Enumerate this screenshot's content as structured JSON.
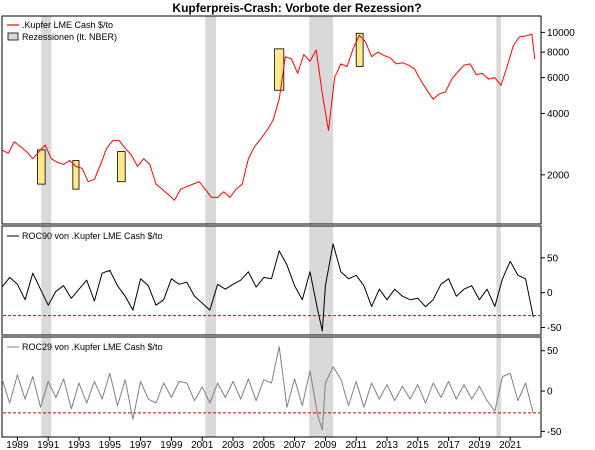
{
  "chart_data": [
    {
      "type": "line",
      "panel": "price",
      "title": "Kupferpreis-Crash: Vorbote der Rezession?",
      "scale": "log",
      "ylim": [
        1200,
        11500
      ],
      "y_ticks": [
        2000,
        4000,
        6000,
        8000,
        10000
      ],
      "y_tick_labels": [
        "2000",
        "4000",
        "6000",
        "8000",
        "10000"
      ],
      "legend_placement": "top-left",
      "series": [
        {
          "name": ".Kupfer LME Cash $/to",
          "color": "#ff0000",
          "x": [
            1988.0,
            1988.4,
            1988.8,
            1989.2,
            1989.6,
            1990.0,
            1990.4,
            1990.8,
            1991.2,
            1991.6,
            1992.0,
            1992.4,
            1992.8,
            1993.2,
            1993.6,
            1994.0,
            1994.4,
            1994.8,
            1995.2,
            1995.6,
            1996.0,
            1996.4,
            1996.8,
            1997.2,
            1997.6,
            1998.0,
            1998.4,
            1998.8,
            1999.2,
            1999.6,
            2000.0,
            2000.4,
            2000.8,
            2001.2,
            2001.6,
            2002.0,
            2002.4,
            2002.8,
            2003.2,
            2003.6,
            2004.0,
            2004.4,
            2004.8,
            2005.2,
            2005.6,
            2006.0,
            2006.4,
            2006.8,
            2007.2,
            2007.6,
            2008.0,
            2008.4,
            2008.8,
            2009.2,
            2009.6,
            2010.0,
            2010.4,
            2010.8,
            2011.2,
            2011.6,
            2012.0,
            2012.4,
            2012.8,
            2013.2,
            2013.6,
            2014.0,
            2014.4,
            2014.8,
            2015.2,
            2015.6,
            2016.0,
            2016.4,
            2016.8,
            2017.2,
            2017.6,
            2018.0,
            2018.4,
            2018.8,
            2019.2,
            2019.6,
            2020.0,
            2020.4,
            2020.8,
            2021.2,
            2021.6,
            2022.0,
            2022.4,
            2022.6
          ],
          "y": [
            2650,
            2550,
            2900,
            2750,
            2600,
            2400,
            2600,
            2800,
            2400,
            2300,
            2250,
            2350,
            2200,
            2150,
            1850,
            1900,
            2250,
            2700,
            2950,
            2950,
            2700,
            2500,
            2200,
            2400,
            2250,
            1800,
            1700,
            1600,
            1500,
            1700,
            1750,
            1800,
            1850,
            1700,
            1550,
            1550,
            1650,
            1550,
            1700,
            1800,
            2400,
            2750,
            3000,
            3300,
            3700,
            4700,
            7600,
            7400,
            6300,
            7800,
            7200,
            8200,
            5000,
            3300,
            6000,
            7000,
            6800,
            8300,
            9700,
            9000,
            7600,
            8000,
            7700,
            7500,
            7000,
            7100,
            6900,
            6600,
            5800,
            5200,
            4700,
            5000,
            5100,
            5900,
            6400,
            6900,
            7000,
            6200,
            6300,
            5900,
            6000,
            5500,
            6800,
            8600,
            9500,
            9600,
            9800,
            7400
          ]
        }
      ],
      "recession_legend": "Rezessionen (lt. NBER)",
      "recessions": [
        [
          1990.55,
          1991.2
        ],
        [
          2001.2,
          2001.9
        ],
        [
          2007.95,
          2009.5
        ],
        [
          2020.1,
          2020.4
        ]
      ],
      "highlights": [
        [
          1990.3,
          1990.8,
          1800,
          2650
        ],
        [
          1992.6,
          1993.0,
          1700,
          2350
        ],
        [
          1995.5,
          1996.0,
          1850,
          2600
        ],
        [
          2005.7,
          2006.3,
          5200,
          8300
        ],
        [
          2011.0,
          2011.45,
          6800,
          9900
        ]
      ],
      "x_ticks": [
        1989,
        1991,
        1993,
        1995,
        1997,
        1999,
        2001,
        2003,
        2005,
        2007,
        2009,
        2011,
        2013,
        2015,
        2017,
        2019,
        2021
      ],
      "xlim": [
        1988.0,
        2023.0
      ]
    },
    {
      "type": "line",
      "panel": "roc90",
      "ylim": [
        -55,
        90
      ],
      "y_ticks": [
        50,
        0,
        -50
      ],
      "y_tick_labels": [
        "50",
        "0",
        "-50"
      ],
      "reference_line": -33,
      "reference_color": "#cc0000",
      "series": [
        {
          "name": "ROC90 von .Kupfer LME Cash $/to",
          "color": "#000000",
          "x": [
            1988.0,
            1988.5,
            1989.0,
            1989.5,
            1990.0,
            1990.5,
            1991.0,
            1991.5,
            1992.0,
            1992.5,
            1993.0,
            1993.5,
            1994.0,
            1994.5,
            1995.0,
            1995.5,
            1996.0,
            1996.5,
            1997.0,
            1997.5,
            1998.0,
            1998.5,
            1999.0,
            1999.5,
            2000.0,
            2000.5,
            2001.0,
            2001.5,
            2002.0,
            2002.5,
            2003.0,
            2003.5,
            2004.0,
            2004.5,
            2005.0,
            2005.5,
            2006.0,
            2006.5,
            2007.0,
            2007.5,
            2008.0,
            2008.5,
            2008.8,
            2009.0,
            2009.5,
            2010.0,
            2010.5,
            2011.0,
            2011.5,
            2012.0,
            2012.5,
            2013.0,
            2013.5,
            2014.0,
            2014.5,
            2015.0,
            2015.5,
            2016.0,
            2016.5,
            2017.0,
            2017.5,
            2018.0,
            2018.5,
            2019.0,
            2019.5,
            2020.0,
            2020.5,
            2021.0,
            2021.5,
            2022.0,
            2022.5
          ],
          "y": [
            8,
            22,
            12,
            -10,
            28,
            5,
            -18,
            2,
            10,
            -8,
            5,
            18,
            -12,
            28,
            32,
            10,
            -5,
            -25,
            20,
            10,
            -18,
            -10,
            20,
            12,
            15,
            -5,
            -15,
            -25,
            12,
            5,
            12,
            18,
            30,
            8,
            22,
            20,
            60,
            40,
            10,
            -10,
            30,
            -25,
            -55,
            10,
            70,
            30,
            20,
            25,
            10,
            -20,
            5,
            -10,
            5,
            -5,
            -10,
            -8,
            -20,
            -10,
            12,
            20,
            -5,
            5,
            10,
            -10,
            5,
            -20,
            20,
            45,
            25,
            20,
            -35
          ]
        }
      ]
    },
    {
      "type": "line",
      "panel": "roc29",
      "ylim": [
        -52,
        62
      ],
      "y_ticks": [
        50,
        0,
        -50
      ],
      "y_tick_labels": [
        "50",
        "0",
        "-50"
      ],
      "reference_line": -27,
      "reference_color": "#cc0000",
      "series": [
        {
          "name": "ROC29 von .Kupfer LME Cash $/to",
          "color": "#808080",
          "x": [
            1988.0,
            1988.5,
            1989.0,
            1989.5,
            1990.0,
            1990.5,
            1991.0,
            1991.5,
            1992.0,
            1992.5,
            1993.0,
            1993.5,
            1994.0,
            1994.5,
            1995.0,
            1995.5,
            1996.0,
            1996.5,
            1997.0,
            1997.5,
            1998.0,
            1998.5,
            1999.0,
            1999.5,
            2000.0,
            2000.5,
            2001.0,
            2001.5,
            2002.0,
            2002.5,
            2003.0,
            2003.5,
            2004.0,
            2004.5,
            2005.0,
            2005.5,
            2006.0,
            2006.5,
            2007.0,
            2007.5,
            2008.0,
            2008.5,
            2008.8,
            2009.0,
            2009.5,
            2010.0,
            2010.5,
            2011.0,
            2011.5,
            2012.0,
            2012.5,
            2013.0,
            2013.5,
            2014.0,
            2014.5,
            2015.0,
            2015.5,
            2016.0,
            2016.5,
            2017.0,
            2017.5,
            2018.0,
            2018.5,
            2019.0,
            2019.5,
            2020.0,
            2020.5,
            2021.0,
            2021.5,
            2022.0,
            2022.5
          ],
          "y": [
            15,
            -15,
            20,
            -10,
            18,
            -20,
            12,
            -8,
            15,
            -22,
            10,
            -15,
            12,
            -10,
            22,
            -18,
            14,
            -35,
            12,
            -10,
            -15,
            10,
            -8,
            12,
            10,
            -12,
            5,
            -15,
            10,
            -8,
            12,
            -10,
            15,
            -12,
            14,
            10,
            55,
            -20,
            15,
            -18,
            25,
            -30,
            -48,
            10,
            30,
            15,
            -18,
            12,
            -20,
            10,
            -10,
            8,
            -12,
            6,
            -10,
            8,
            -15,
            10,
            -8,
            12,
            -10,
            8,
            -10,
            6,
            -12,
            -25,
            18,
            22,
            -12,
            10,
            -28
          ]
        }
      ]
    }
  ]
}
